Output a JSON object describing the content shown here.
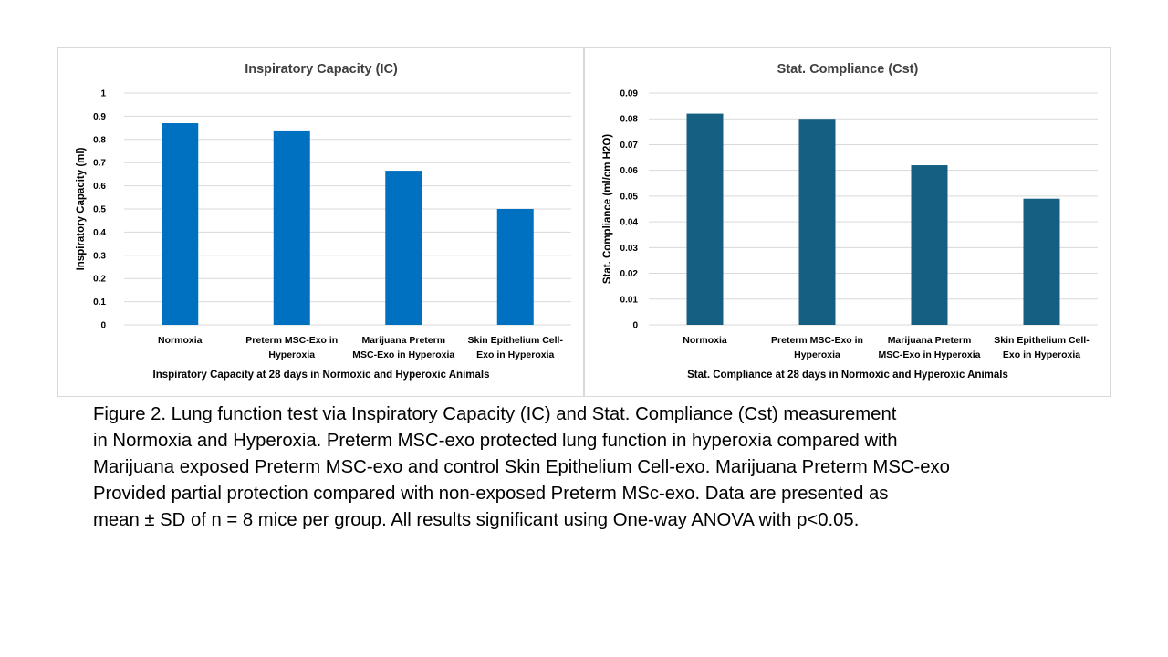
{
  "chart_data": [
    {
      "type": "bar",
      "title": "Inspiratory Capacity (IC)",
      "xlabel": "Inspiratory Capacity  at 28 days in Normoxic and Hyperoxic Animals",
      "ylabel": "Inspiratory Capacity (ml)",
      "categories": [
        [
          "Normoxia"
        ],
        [
          "Preterm MSC-Exo in",
          "Hyperoxia"
        ],
        [
          "Marijuana Preterm",
          "MSC-Exo  in Hyperoxia"
        ],
        [
          "Skin Epithelium Cell-",
          "Exo  in Hyperoxia"
        ]
      ],
      "values": [
        0.87,
        0.835,
        0.665,
        0.5
      ],
      "ylim": [
        0,
        1
      ],
      "yticks": [
        "0",
        "0.1",
        "0.2",
        "0.3",
        "0.4",
        "0.5",
        "0.6",
        "0.7",
        "0.8",
        "0.9",
        "1"
      ],
      "grid": true,
      "color": "#0070C0"
    },
    {
      "type": "bar",
      "title": "Stat. Compliance (Cst)",
      "xlabel": "Stat. Compliance at 28 days in Normoxic and Hyperoxic Animals",
      "ylabel": "Stat. Compliance (ml/cm H2O)",
      "categories": [
        [
          "Normoxia"
        ],
        [
          "Preterm MSC-Exo in",
          "Hyperoxia"
        ],
        [
          "Marijuana Preterm",
          "MSC-Exo  in Hyperoxia"
        ],
        [
          "Skin Epithelium Cell-",
          "Exo  in Hyperoxia"
        ]
      ],
      "values": [
        0.082,
        0.08,
        0.062,
        0.049
      ],
      "ylim": [
        0,
        0.09
      ],
      "yticks": [
        "0",
        "0.01",
        "0.02",
        "0.03",
        "0.04",
        "0.05",
        "0.06",
        "0.07",
        "0.08",
        "0.09"
      ],
      "grid": true,
      "color": "#156082"
    }
  ],
  "caption": [
    "Figure 2. Lung function test via Inspiratory Capacity (IC) and Stat. Compliance (Cst) measurement",
    "in Normoxia and Hyperoxia. Preterm MSC-exo protected lung function in hyperoxia compared with",
    "Marijuana exposed Preterm MSC-exo and control Skin Epithelium Cell-exo. Marijuana Preterm MSC-exo",
    "Provided partial protection compared with non-exposed Preterm MSc-exo. Data are presented as",
    "mean ± SD of n = 8 mice per group.  All results significant using One-way ANOVA with p<0.05."
  ]
}
